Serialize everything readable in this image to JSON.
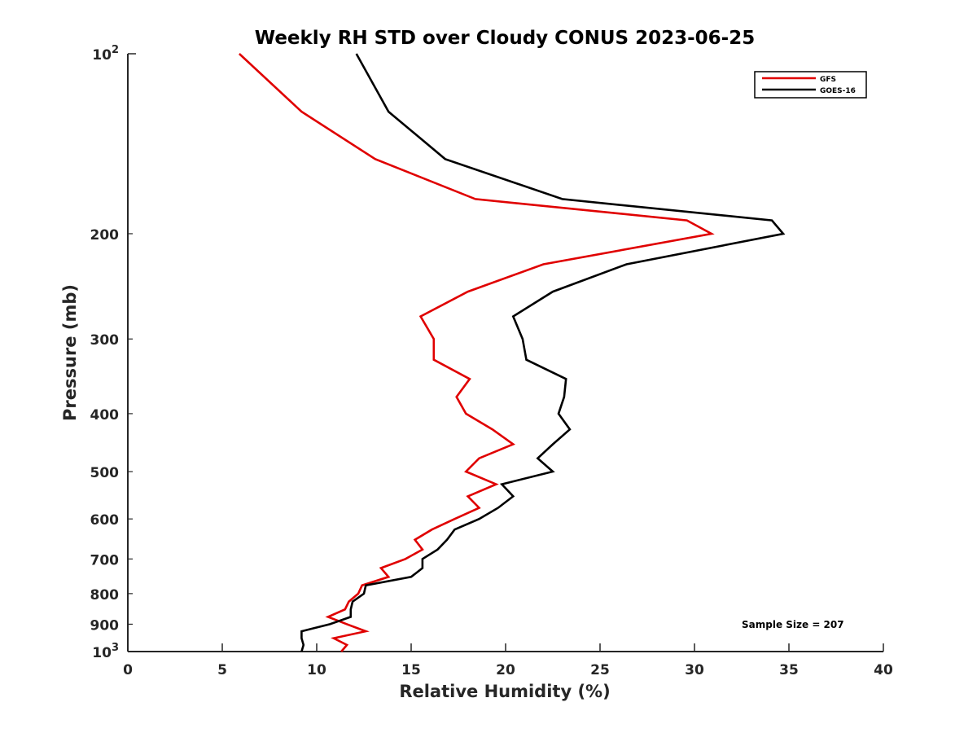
{
  "chart_data": {
    "type": "line",
    "title": "Weekly RH STD over Cloudy CONUS 2023-06-25",
    "xlabel": "Relative Humidity (%)",
    "ylabel": "Pressure (mb)",
    "xlim": [
      0,
      40
    ],
    "ylim": [
      100,
      1000
    ],
    "yscale": "log",
    "y_reversed": true,
    "grid": false,
    "legend_location": "top-right",
    "x_ticks": [
      0,
      5,
      10,
      15,
      20,
      25,
      30,
      35,
      40
    ],
    "x_tick_labels": [
      "0",
      "5",
      "10",
      "15",
      "20",
      "25",
      "30",
      "35",
      "40"
    ],
    "y_ticks_major": [
      {
        "value": 100,
        "base": "10",
        "exp": "2"
      },
      {
        "value": 1000,
        "base": "10",
        "exp": "3"
      }
    ],
    "y_ticks_minor": [
      {
        "value": 200,
        "label": "200"
      },
      {
        "value": 300,
        "label": "300"
      },
      {
        "value": 400,
        "label": "400"
      },
      {
        "value": 500,
        "label": "500"
      },
      {
        "value": 600,
        "label": "600"
      },
      {
        "value": 700,
        "label": "700"
      },
      {
        "value": 800,
        "label": "800"
      },
      {
        "value": 900,
        "label": "900"
      }
    ],
    "annotation": "Sample Size = 207",
    "series": [
      {
        "name": "GFS",
        "color": "#e00000",
        "points": [
          [
            5.9,
            100
          ],
          [
            9.2,
            125
          ],
          [
            13.1,
            150
          ],
          [
            18.4,
            175
          ],
          [
            29.6,
            190
          ],
          [
            30.9,
            200
          ],
          [
            22.0,
            225
          ],
          [
            18.0,
            250
          ],
          [
            15.5,
            275
          ],
          [
            16.2,
            300
          ],
          [
            16.2,
            325
          ],
          [
            18.1,
            350
          ],
          [
            17.4,
            375
          ],
          [
            17.9,
            400
          ],
          [
            19.3,
            425
          ],
          [
            20.4,
            450
          ],
          [
            18.6,
            475
          ],
          [
            17.9,
            500
          ],
          [
            19.5,
            525
          ],
          [
            18.0,
            550
          ],
          [
            18.6,
            575
          ],
          [
            17.3,
            600
          ],
          [
            16.1,
            625
          ],
          [
            15.2,
            650
          ],
          [
            15.6,
            675
          ],
          [
            14.7,
            700
          ],
          [
            13.4,
            725
          ],
          [
            13.8,
            750
          ],
          [
            12.4,
            775
          ],
          [
            12.2,
            800
          ],
          [
            11.7,
            825
          ],
          [
            11.5,
            850
          ],
          [
            10.6,
            875
          ],
          [
            11.6,
            900
          ],
          [
            12.6,
            925
          ],
          [
            10.9,
            950
          ],
          [
            11.6,
            975
          ],
          [
            11.3,
            1000
          ]
        ]
      },
      {
        "name": "GOES-16",
        "color": "#000000",
        "points": [
          [
            12.1,
            100
          ],
          [
            13.8,
            125
          ],
          [
            16.8,
            150
          ],
          [
            23.0,
            175
          ],
          [
            34.1,
            190
          ],
          [
            34.7,
            200
          ],
          [
            26.4,
            225
          ],
          [
            22.5,
            250
          ],
          [
            20.4,
            275
          ],
          [
            20.9,
            300
          ],
          [
            21.1,
            325
          ],
          [
            23.2,
            350
          ],
          [
            23.1,
            375
          ],
          [
            22.8,
            400
          ],
          [
            23.4,
            425
          ],
          [
            22.5,
            450
          ],
          [
            21.7,
            475
          ],
          [
            22.5,
            500
          ],
          [
            19.8,
            525
          ],
          [
            20.4,
            550
          ],
          [
            19.6,
            575
          ],
          [
            18.6,
            600
          ],
          [
            17.3,
            625
          ],
          [
            16.9,
            650
          ],
          [
            16.4,
            675
          ],
          [
            15.6,
            700
          ],
          [
            15.6,
            725
          ],
          [
            15.0,
            750
          ],
          [
            12.6,
            775
          ],
          [
            12.5,
            800
          ],
          [
            11.9,
            825
          ],
          [
            11.8,
            850
          ],
          [
            11.8,
            875
          ],
          [
            10.7,
            900
          ],
          [
            9.2,
            925
          ],
          [
            9.2,
            950
          ],
          [
            9.3,
            975
          ],
          [
            9.2,
            1000
          ]
        ]
      }
    ]
  }
}
